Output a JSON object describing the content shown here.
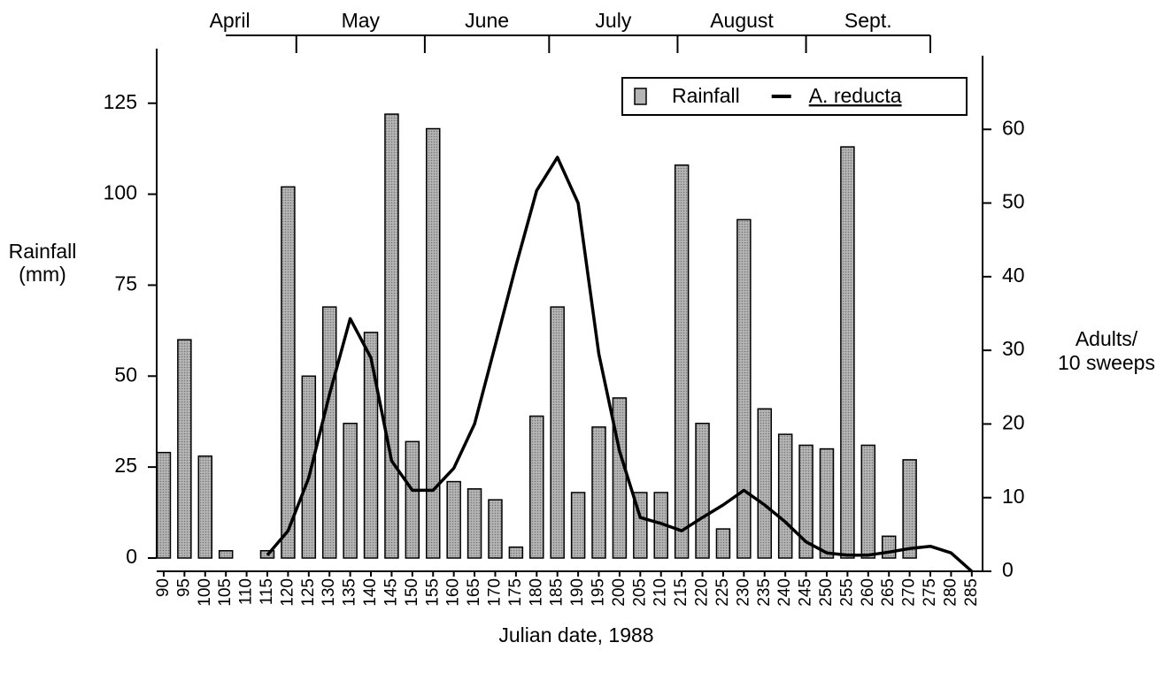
{
  "chart_data": {
    "type": "bar-line",
    "xlabel": "Julian date, 1988",
    "ylabel": [
      "Rainfall",
      "(mm)"
    ],
    "y2label": [
      "Adults/",
      "10 sweeps"
    ],
    "x": [
      90,
      95,
      100,
      105,
      110,
      115,
      120,
      125,
      130,
      135,
      140,
      145,
      150,
      155,
      160,
      165,
      170,
      175,
      180,
      185,
      190,
      195,
      200,
      205,
      210,
      215,
      220,
      225,
      230,
      235,
      240,
      245,
      250,
      255,
      260,
      265,
      270,
      275,
      280,
      285
    ],
    "xlim": [
      88.3,
      287.6
    ],
    "series": [
      {
        "name": "Rainfall",
        "kind": "bar",
        "color": "#b5b5b5",
        "values": [
          29,
          60,
          28,
          2,
          null,
          2,
          102,
          50,
          69,
          37,
          62,
          122,
          32,
          118,
          21,
          19,
          16,
          3,
          39,
          69,
          18,
          36,
          44,
          18,
          18,
          108,
          37,
          8,
          93,
          41,
          34,
          31,
          30,
          113,
          31,
          6,
          27,
          null,
          null,
          null
        ]
      },
      {
        "name": "A. reducta",
        "kind": "line",
        "axis": "y2",
        "color": "#000000",
        "values": [
          null,
          null,
          null,
          null,
          null,
          2.2,
          5.5,
          12.7,
          24,
          34.3,
          29,
          15,
          11,
          11,
          14,
          20,
          30.7,
          41.5,
          51.7,
          56.2,
          50,
          29.5,
          16.3,
          7.3,
          6.5,
          5.5,
          7.3,
          9,
          11,
          9,
          6.7,
          4,
          2.5,
          2.2,
          2.2,
          2.6,
          3.1,
          3.4,
          2.5,
          0
        ]
      }
    ],
    "ylim": [
      0,
      140
    ],
    "yticks": [
      0,
      25,
      50,
      75,
      100,
      125
    ],
    "y2lim": [
      0,
      70
    ],
    "y2ticks": [
      0,
      10,
      20,
      30,
      40,
      50,
      60
    ],
    "top_axis": {
      "labels": [
        "April",
        "May",
        "June",
        "July",
        "August",
        "Sept."
      ],
      "ticks": [
        122,
        153,
        183,
        214,
        245,
        275
      ]
    },
    "legend": "upper right"
  }
}
